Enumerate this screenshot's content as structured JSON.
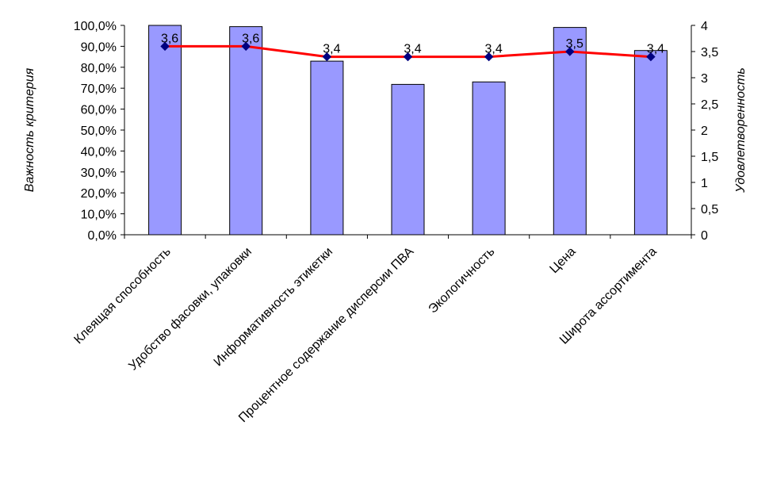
{
  "chart_data": {
    "type": "bar",
    "categories": [
      "Клеящая способность",
      "Удобство фасовки, упаковки",
      "Информативность этикетки",
      "Процентное содержание дисперсии ПВА",
      "Экологичность",
      "Цена",
      "Широта ассортимента"
    ],
    "series": [
      {
        "type": "bar",
        "axis": "left",
        "color": "#9999ff",
        "values": [
          100.0,
          99.4,
          82.9,
          71.8,
          73.0,
          99.0,
          88.0
        ]
      },
      {
        "type": "line",
        "axis": "right",
        "color": "#ff0000",
        "marker_color": "#000080",
        "values": [
          3.6,
          3.6,
          3.4,
          3.4,
          3.4,
          3.5,
          3.4
        ],
        "data_labels": [
          "3,6",
          "3,6",
          "3,4",
          "3,4",
          "3,4",
          "3,5",
          "3,4"
        ]
      }
    ],
    "ylabel": "Важность критерия",
    "ylabel_right": "Удовлетворенность",
    "ylim": [
      0,
      100
    ],
    "ylim_right": [
      0,
      4
    ],
    "yticks": [
      "0,0%",
      "10,0%",
      "20,0%",
      "30,0%",
      "40,0%",
      "50,0%",
      "60,0%",
      "70,0%",
      "80,0%",
      "90,0%",
      "100,0%"
    ],
    "yticks_right": [
      "0",
      "0,5",
      "1",
      "1,5",
      "2",
      "2,5",
      "3",
      "3,5",
      "4"
    ],
    "grid": false,
    "legend": "none"
  }
}
